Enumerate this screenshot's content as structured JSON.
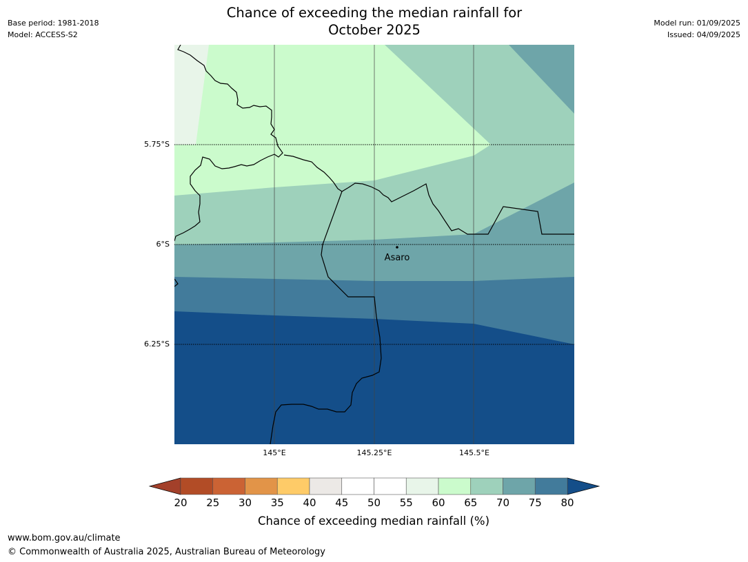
{
  "header": {
    "title_line1": "Chance of exceeding the median rainfall for",
    "title_line2": "October 2025",
    "base_period": "Base period: 1981-2018",
    "model": "Model: ACCESS-S2",
    "model_run": "Model run: 01/09/2025",
    "issued": "Issued: 04/09/2025"
  },
  "map": {
    "lat_labels": [
      "5.75°S",
      "6°S",
      "6.25°S"
    ],
    "lon_labels": [
      "145°E",
      "145.25°E",
      "145.5°E"
    ],
    "place_name": "Asaro"
  },
  "colorbar": {
    "title": "Chance of exceeding median rainfall (%)",
    "ticks": [
      "20",
      "25",
      "30",
      "35",
      "40",
      "45",
      "50",
      "55",
      "60",
      "65",
      "70",
      "75",
      "80"
    ],
    "under_color": "#a3402a",
    "over_color": "#144e89",
    "colors": [
      "#b24c26",
      "#cb6334",
      "#e29448",
      "#fecb68",
      "#ece9e6",
      "#ffffff",
      "#ffffff",
      "#e8f5e9",
      "#cbfbcc",
      "#9ed1bb",
      "#6ea5a9",
      "#427b9b"
    ]
  },
  "footer": {
    "url": "www.bom.gov.au/climate",
    "copyright": "© Commonwealth of Australia 2025, Australian Bureau of Meteorology"
  }
}
